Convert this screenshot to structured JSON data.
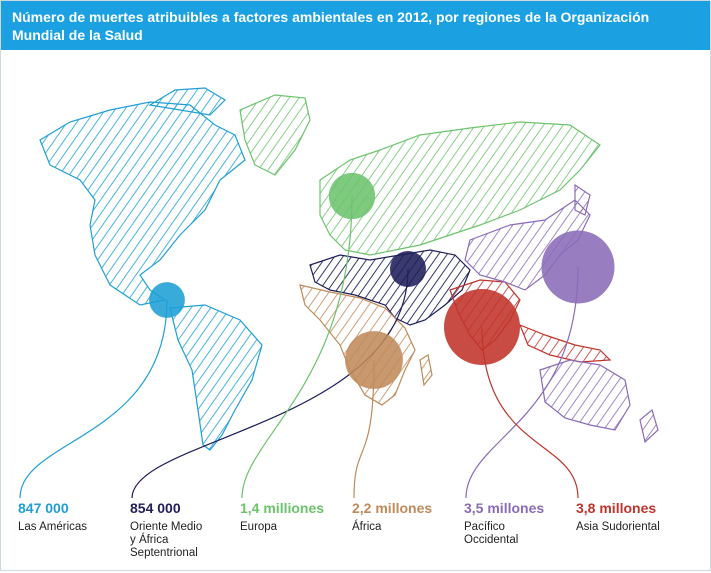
{
  "header": {
    "title": "Número de muertes atribuibles a factores ambientales en 2012, por regiones de la Organización Mundial de la Salud"
  },
  "colors": {
    "header_bg": "#1ba1e2",
    "americas": "#1e9fd6",
    "mideast": "#1f1f5a",
    "europe": "#6cc36c",
    "africa": "#c08a5a",
    "western_pacific": "#8a6bb8",
    "southeast_asia": "#c0332a"
  },
  "regions": [
    {
      "id": "americas",
      "value": "847 000",
      "label": "Las Américas",
      "deaths": 847000
    },
    {
      "id": "mideast",
      "value": "854 000",
      "label": "Oriente Medio\ny África\nSeptentrional",
      "deaths": 854000
    },
    {
      "id": "europe",
      "value": "1,4 milliones",
      "label": "Europa",
      "deaths": 1400000
    },
    {
      "id": "africa",
      "value": "2,2 millones",
      "label": "África",
      "deaths": 2200000
    },
    {
      "id": "western_pacific",
      "value": "3,5 millones",
      "label": "Pacífico\nOccidental",
      "deaths": 3500000
    },
    {
      "id": "southeast_asia",
      "value": "3,8 millones",
      "label": "Asia Sudoriental",
      "deaths": 3800000
    }
  ]
}
